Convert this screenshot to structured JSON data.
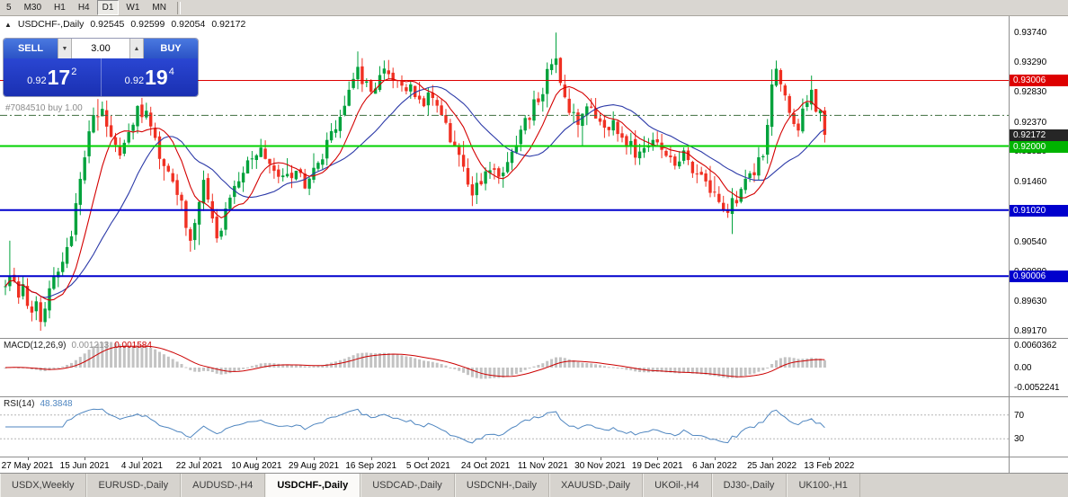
{
  "toolbar": {
    "timeframes": [
      "5",
      "M30",
      "H1",
      "H4",
      "D1",
      "W1",
      "MN"
    ],
    "active": "D1"
  },
  "chart": {
    "header": {
      "symbol": "USDCHF-,Daily",
      "open": "0.92545",
      "high": "0.92599",
      "low": "0.92054",
      "close": "0.92172"
    },
    "trade_panel": {
      "sell_label": "SELL",
      "buy_label": "BUY",
      "volume": "3.00",
      "spinner_down_icon": "▼",
      "spinner_up_icon": "▲",
      "sell_price": {
        "prefix": "0.92",
        "big": "17",
        "sup": "2"
      },
      "buy_price": {
        "prefix": "0.92",
        "big": "19",
        "sup": "4"
      }
    },
    "one_click_toggle_icon": "▲",
    "order_label": "#7084510 buy 1.00"
  },
  "chart_data": {
    "type": "candlestick",
    "symbol": "USDCHF",
    "timeframe": "Daily",
    "price_range": [
      0.8906,
      0.9399
    ],
    "num_candles": 187,
    "seed": 11,
    "candle_up_color": "#00a23c",
    "candle_down_color": "#f03022",
    "keypoints": [
      [
        0,
        0.8985
      ],
      [
        1,
        0.901
      ],
      [
        2,
        0.8995
      ],
      [
        3,
        0.897
      ],
      [
        4,
        0.899
      ],
      [
        5,
        0.896
      ],
      [
        6,
        0.894
      ],
      [
        7,
        0.8955
      ],
      [
        8,
        0.893
      ],
      [
        9,
        0.896
      ],
      [
        10,
        0.8985
      ],
      [
        11,
        0.9
      ],
      [
        12,
        0.9005
      ],
      [
        13,
        0.902
      ],
      [
        15,
        0.907
      ],
      [
        16,
        0.911
      ],
      [
        17,
        0.915
      ],
      [
        18,
        0.919
      ],
      [
        19,
        0.9225
      ],
      [
        20,
        0.9245
      ],
      [
        22,
        0.925
      ],
      [
        24,
        0.921
      ],
      [
        26,
        0.919
      ],
      [
        28,
        0.9225
      ],
      [
        30,
        0.9255
      ],
      [
        32,
        0.925
      ],
      [
        34,
        0.9205
      ],
      [
        36,
        0.917
      ],
      [
        38,
        0.915
      ],
      [
        40,
        0.9115
      ],
      [
        41,
        0.9075
      ],
      [
        42,
        0.905
      ],
      [
        44,
        0.911
      ],
      [
        45,
        0.914
      ],
      [
        47,
        0.9085
      ],
      [
        48,
        0.906
      ],
      [
        50,
        0.91
      ],
      [
        52,
        0.914
      ],
      [
        54,
        0.916
      ],
      [
        56,
        0.918
      ],
      [
        58,
        0.9205
      ],
      [
        60,
        0.9175
      ],
      [
        62,
        0.9155
      ],
      [
        64,
        0.9148
      ],
      [
        66,
        0.9165
      ],
      [
        68,
        0.9138
      ],
      [
        70,
        0.9158
      ],
      [
        72,
        0.9185
      ],
      [
        74,
        0.9215
      ],
      [
        76,
        0.9245
      ],
      [
        78,
        0.929
      ],
      [
        80,
        0.932
      ],
      [
        81,
        0.93
      ],
      [
        83,
        0.9285
      ],
      [
        85,
        0.9305
      ],
      [
        87,
        0.9315
      ],
      [
        89,
        0.93
      ],
      [
        91,
        0.929
      ],
      [
        93,
        0.928
      ],
      [
        95,
        0.9268
      ],
      [
        96,
        0.928
      ],
      [
        98,
        0.9258
      ],
      [
        100,
        0.923
      ],
      [
        102,
        0.9195
      ],
      [
        104,
        0.916
      ],
      [
        106,
        0.9128
      ],
      [
        108,
        0.915
      ],
      [
        110,
        0.9165
      ],
      [
        112,
        0.9148
      ],
      [
        114,
        0.9172
      ],
      [
        116,
        0.9205
      ],
      [
        118,
        0.9238
      ],
      [
        120,
        0.9262
      ],
      [
        122,
        0.9288
      ],
      [
        124,
        0.9332
      ],
      [
        125,
        0.9344
      ],
      [
        126,
        0.9305
      ],
      [
        128,
        0.9258
      ],
      [
        130,
        0.9238
      ],
      [
        132,
        0.9262
      ],
      [
        134,
        0.9252
      ],
      [
        136,
        0.9222
      ],
      [
        138,
        0.9238
      ],
      [
        140,
        0.9218
      ],
      [
        142,
        0.9198
      ],
      [
        144,
        0.9185
      ],
      [
        146,
        0.9196
      ],
      [
        148,
        0.9206
      ],
      [
        150,
        0.9186
      ],
      [
        152,
        0.9168
      ],
      [
        154,
        0.9186
      ],
      [
        156,
        0.9158
      ],
      [
        158,
        0.9152
      ],
      [
        160,
        0.9138
      ],
      [
        162,
        0.9122
      ],
      [
        164,
        0.9102
      ],
      [
        166,
        0.9122
      ],
      [
        168,
        0.9142
      ],
      [
        170,
        0.9162
      ],
      [
        172,
        0.9192
      ],
      [
        173,
        0.9242
      ],
      [
        174,
        0.9292
      ],
      [
        175,
        0.9318
      ],
      [
        176,
        0.9292
      ],
      [
        177,
        0.9268
      ],
      [
        178,
        0.9248
      ],
      [
        180,
        0.9232
      ],
      [
        181,
        0.9252
      ],
      [
        182,
        0.9268
      ],
      [
        183,
        0.9282
      ],
      [
        184,
        0.9248
      ],
      [
        185,
        0.925
      ],
      [
        186,
        0.9217
      ]
    ],
    "overrides": {
      "1": {
        "h": 0.9055
      },
      "8": {
        "l": 0.8917
      },
      "21": {
        "h": 0.9272
      },
      "42": {
        "l": 0.9038
      },
      "48": {
        "l": 0.9052
      },
      "80": {
        "h": 0.9345
      },
      "87": {
        "h": 0.9332
      },
      "106": {
        "l": 0.9108
      },
      "125": {
        "h": 0.9374
      },
      "164": {
        "l": 0.909
      },
      "175": {
        "h": 0.9331
      },
      "183": {
        "h": 0.9308
      }
    },
    "last_candle": {
      "o": 0.92545,
      "h": 0.92599,
      "l": 0.92054,
      "c": 0.92172
    },
    "y_axis_labels": [
      {
        "text": "0.93740",
        "p": 0.9374
      },
      {
        "text": "0.93290",
        "p": 0.9329
      },
      {
        "text": "0.92830",
        "p": 0.9283
      },
      {
        "text": "0.92370",
        "p": 0.9237
      },
      {
        "text": "0.91920",
        "p": 0.9192
      },
      {
        "text": "0.91460",
        "p": 0.9146
      },
      {
        "text": "0.91000",
        "p": 0.91
      },
      {
        "text": "0.90540",
        "p": 0.9054
      },
      {
        "text": "0.90080",
        "p": 0.9008
      },
      {
        "text": "0.89630",
        "p": 0.8963
      },
      {
        "text": "0.89170",
        "p": 0.8917
      }
    ],
    "x_axis_labels": [
      {
        "label": "27 May 2021",
        "i": 5
      },
      {
        "label": "15 Jun 2021",
        "i": 18
      },
      {
        "label": "4 Jul 2021",
        "i": 31
      },
      {
        "label": "22 Jul 2021",
        "i": 44
      },
      {
        "label": "10 Aug 2021",
        "i": 57
      },
      {
        "label": "29 Aug 2021",
        "i": 70
      },
      {
        "label": "16 Sep 2021",
        "i": 83
      },
      {
        "label": "5 Oct 2021",
        "i": 96
      },
      {
        "label": "24 Oct 2021",
        "i": 109
      },
      {
        "label": "11 Nov 2021",
        "i": 122
      },
      {
        "label": "30 Nov 2021",
        "i": 135
      },
      {
        "label": "19 Dec 2021",
        "i": 148
      },
      {
        "label": "6 Jan 2022",
        "i": 161
      },
      {
        "label": "25 Jan 2022",
        "i": 174
      },
      {
        "label": "13 Feb 2022",
        "i": 187
      }
    ],
    "levels": [
      {
        "price": 0.93006,
        "color": "#dd0000",
        "width": 1
      },
      {
        "price": 0.92,
        "color": "#00d200",
        "width": 2
      },
      {
        "price": 0.9102,
        "color": "#0000cd",
        "width": 2
      },
      {
        "price": 0.90006,
        "color": "#0000cd",
        "width": 2
      }
    ],
    "order_line": {
      "price": 0.9247,
      "color": "#3e6e3e"
    },
    "badges": [
      {
        "text": "0.93006",
        "price": 0.93006,
        "bg": "#dd0000"
      },
      {
        "text": "0.92172",
        "price": 0.92172,
        "bg": "#262626"
      },
      {
        "text": "0.92000",
        "price": 0.92,
        "bg": "#00b400"
      },
      {
        "text": "0.91020",
        "price": 0.9102,
        "bg": "#0000cd"
      },
      {
        "text": "0.90006",
        "price": 0.90006,
        "bg": "#0000cd"
      }
    ],
    "indicators": {
      "ma_fast": {
        "period": 9,
        "color": "#d40000"
      },
      "ma_slow": {
        "period": 21,
        "color": "#2c3aa8"
      },
      "macd": {
        "label": "MACD(12,26,9)",
        "value_main": "0.001213",
        "value_signal": "0.001584",
        "hist_color": "#c3c3c3",
        "signal_color": "#cc0000",
        "axis_labels": [
          {
            "text": "0.0060362",
            "v": 0.0060362
          },
          {
            "text": "0.00",
            "v": 0
          },
          {
            "text": "-0.0052241",
            "v": -0.0052241
          }
        ]
      },
      "rsi": {
        "label": "RSI(14)",
        "value": "48.3848",
        "color": "#4f86c0",
        "levels": [
          {
            "text": "70",
            "v": 70
          },
          {
            "text": "30",
            "v": 30
          }
        ]
      }
    }
  },
  "bottom_tabs": [
    {
      "label": "USDX,Weekly",
      "active": false
    },
    {
      "label": "EURUSD-,Daily",
      "active": false
    },
    {
      "label": "AUDUSD-,H4",
      "active": false
    },
    {
      "label": "USDCHF-,Daily",
      "active": true
    },
    {
      "label": "USDCAD-,Daily",
      "active": false
    },
    {
      "label": "USDCNH-,Daily",
      "active": false
    },
    {
      "label": "XAUUSD-,Daily",
      "active": false
    },
    {
      "label": "UKOil-,H4",
      "active": false
    },
    {
      "label": "DJ30-,Daily",
      "active": false
    },
    {
      "label": "UK100-,H1",
      "active": false
    }
  ]
}
